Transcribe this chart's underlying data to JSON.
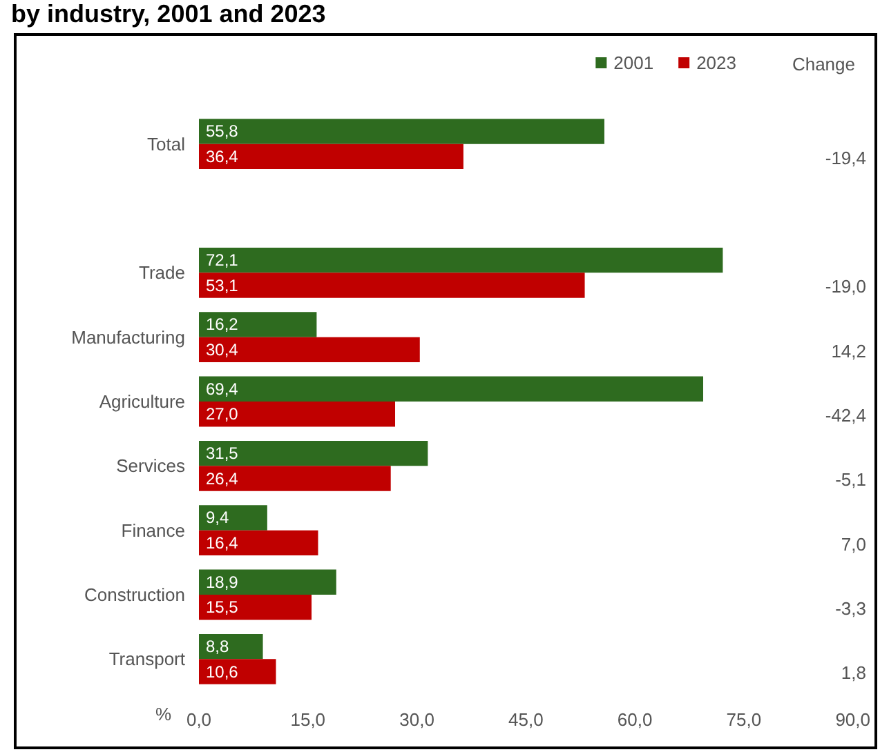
{
  "chart_data": {
    "type": "bar",
    "orientation": "horizontal",
    "title": "by industry, 2001 and 2023",
    "xlabel": "%",
    "categories": [
      "Total",
      null,
      "Trade",
      "Manufacturing",
      "Agriculture",
      "Services",
      "Finance",
      "Construction",
      "Transport"
    ],
    "series": [
      {
        "name": "2001",
        "color": "#2e6b1f",
        "values": [
          55.8,
          null,
          72.1,
          16.2,
          69.4,
          31.5,
          9.4,
          18.9,
          8.8
        ],
        "value_labels": [
          "55,8",
          null,
          "72,1",
          "16,2",
          "69,4",
          "31,5",
          "9,4",
          "18,9",
          "8,8"
        ]
      },
      {
        "name": "2023",
        "color": "#c00000",
        "values": [
          36.4,
          null,
          53.1,
          30.4,
          27.0,
          26.4,
          16.4,
          15.5,
          10.6
        ],
        "value_labels": [
          "36,4",
          null,
          "53,1",
          "30,4",
          "27,0",
          "26,4",
          "16,4",
          "15,5",
          "10,6"
        ]
      }
    ],
    "xlim": [
      0,
      90
    ],
    "xticks": [
      {
        "value": 0,
        "label": "0,0"
      },
      {
        "value": 15,
        "label": "15,0"
      },
      {
        "value": 30,
        "label": "30,0"
      },
      {
        "value": 45,
        "label": "45,0"
      },
      {
        "value": 60,
        "label": "60,0"
      },
      {
        "value": 75,
        "label": "75,0"
      },
      {
        "value": 90,
        "label": "90,0"
      }
    ],
    "annotations": [
      "Change",
      "-19,4",
      "-19,0",
      "14,2",
      "-42,4",
      "-5,1",
      "7,0",
      "-3,3",
      "1,8"
    ],
    "legend": "top right",
    "grid": false
  }
}
